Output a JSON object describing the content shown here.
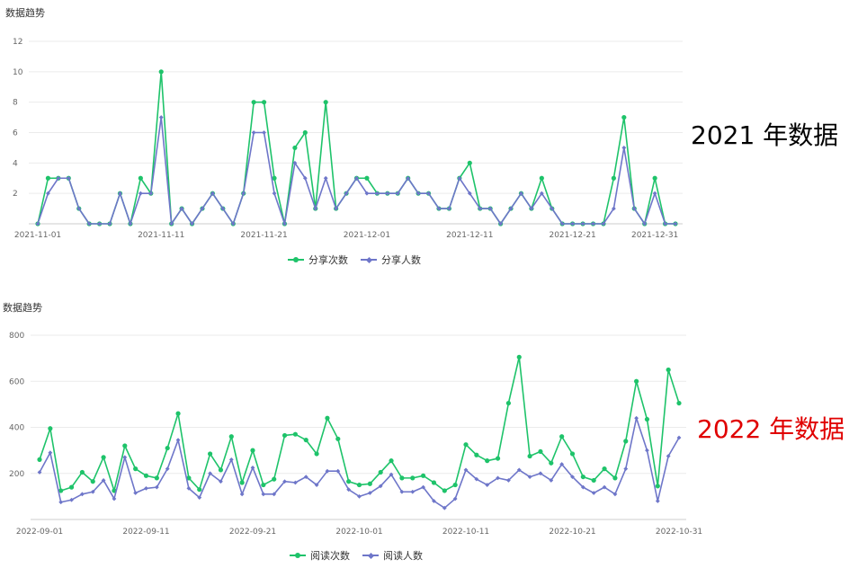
{
  "labels": {
    "big1": "2021 年数据",
    "big2": "2022 年数据"
  },
  "colors": {
    "green": "#1ec36a",
    "purple": "#6e76c9",
    "red": "#e00000"
  },
  "chart_data": [
    {
      "type": "line",
      "title": "数据趋势",
      "legend_position": "bottom-center",
      "grid": true,
      "ylim": [
        0,
        12
      ],
      "yticks": [
        2,
        4,
        6,
        8,
        10,
        12
      ],
      "x_start": "2021-11-01",
      "x_tick_labels": [
        "2021-11-01",
        "2021-11-11",
        "2021-11-21",
        "2021-12-01",
        "2021-12-11",
        "2021-12-21",
        "2021-12-31"
      ],
      "x_tick_index": [
        0,
        12,
        22,
        32,
        42,
        52,
        60
      ],
      "series": [
        {
          "name": "分享次数",
          "color": "#1ec36a",
          "marker": "circle",
          "values": [
            0,
            3,
            3,
            3,
            1,
            0,
            0,
            0,
            2,
            0,
            3,
            2,
            10,
            0,
            1,
            0,
            1,
            2,
            1,
            0,
            2,
            8,
            8,
            3,
            0,
            5,
            6,
            1,
            8,
            1,
            2,
            3,
            3,
            2,
            2,
            2,
            3,
            2,
            2,
            1,
            1,
            3,
            4,
            1,
            1,
            0,
            1,
            2,
            1,
            3,
            1,
            0,
            0,
            0,
            0,
            0,
            3,
            7,
            1,
            0,
            3,
            0,
            0
          ]
        },
        {
          "name": "分享人数",
          "color": "#6e76c9",
          "marker": "diamond",
          "values": [
            0,
            2,
            3,
            3,
            1,
            0,
            0,
            0,
            2,
            0,
            2,
            2,
            7,
            0,
            1,
            0,
            1,
            2,
            1,
            0,
            2,
            6,
            6,
            2,
            0,
            4,
            3,
            1,
            3,
            1,
            2,
            3,
            2,
            2,
            2,
            2,
            3,
            2,
            2,
            1,
            1,
            3,
            2,
            1,
            1,
            0,
            1,
            2,
            1,
            2,
            1,
            0,
            0,
            0,
            0,
            0,
            1,
            5,
            1,
            0,
            2,
            0,
            0
          ]
        }
      ]
    },
    {
      "type": "line",
      "title": "数据趋势",
      "legend_position": "bottom-center",
      "grid": true,
      "ylim": [
        0,
        800
      ],
      "yticks": [
        200,
        400,
        600,
        800
      ],
      "x_start": "2022-09-01",
      "x_tick_labels": [
        "2022-09-01",
        "2022-09-11",
        "2022-09-21",
        "2022-10-01",
        "2022-10-11",
        "2022-10-21",
        "2022-10-31"
      ],
      "x_tick_index": [
        0,
        10,
        20,
        30,
        40,
        50,
        60
      ],
      "series": [
        {
          "name": "阅读次数",
          "color": "#1ec36a",
          "marker": "circle",
          "values": [
            260,
            395,
            125,
            140,
            205,
            165,
            270,
            125,
            320,
            220,
            190,
            180,
            310,
            460,
            180,
            130,
            285,
            215,
            360,
            160,
            300,
            150,
            175,
            365,
            370,
            345,
            285,
            440,
            350,
            165,
            150,
            155,
            205,
            255,
            180,
            180,
            190,
            160,
            125,
            150,
            325,
            280,
            255,
            265,
            505,
            705,
            275,
            295,
            245,
            360,
            285,
            185,
            170,
            220,
            180,
            340,
            600,
            435,
            145,
            650,
            505
          ]
        },
        {
          "name": "阅读人数",
          "color": "#6e76c9",
          "marker": "diamond",
          "values": [
            205,
            290,
            75,
            85,
            110,
            120,
            170,
            90,
            270,
            115,
            135,
            140,
            220,
            345,
            135,
            95,
            200,
            165,
            260,
            110,
            225,
            110,
            110,
            165,
            160,
            185,
            150,
            210,
            210,
            130,
            100,
            115,
            145,
            195,
            120,
            120,
            140,
            80,
            50,
            90,
            215,
            175,
            150,
            180,
            170,
            215,
            185,
            200,
            170,
            240,
            185,
            140,
            115,
            140,
            110,
            220,
            440,
            300,
            80,
            275,
            355
          ]
        }
      ]
    }
  ]
}
